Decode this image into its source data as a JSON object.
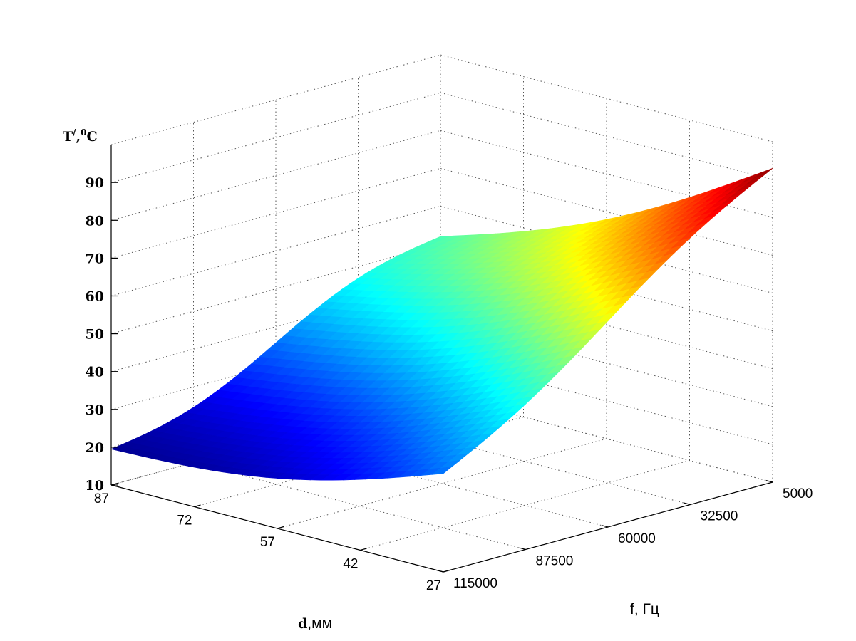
{
  "chart_data": {
    "type": "surface3d",
    "colormap": "jet",
    "grid": true,
    "xlabel_bold": "d",
    "xlabel_rest": ",мм",
    "ylabel": "f, Гц",
    "zlabel_main": "T",
    "zlabel_sup1": "/",
    "zlabel_mid": ",",
    "zlabel_sup2": "0",
    "zlabel_end": "C",
    "d_ticks": [
      "87",
      "72",
      "57",
      "42",
      "27"
    ],
    "f_ticks": [
      "5000",
      "32500",
      "60000",
      "87500",
      "115000"
    ],
    "z_ticks": [
      "10",
      "20",
      "30",
      "40",
      "50",
      "60",
      "70",
      "80",
      "90"
    ],
    "d_range": [
      27,
      87
    ],
    "f_range": [
      5000,
      115000
    ],
    "z_range": [
      10,
      100
    ],
    "corner_values": [
      {
        "d": 87,
        "f": 115000,
        "T": 19.5
      },
      {
        "d": 27,
        "f": 115000,
        "T": 36
      },
      {
        "d": 87,
        "f": 5000,
        "T": 52
      },
      {
        "d": 27,
        "f": 5000,
        "T": 93
      }
    ]
  }
}
